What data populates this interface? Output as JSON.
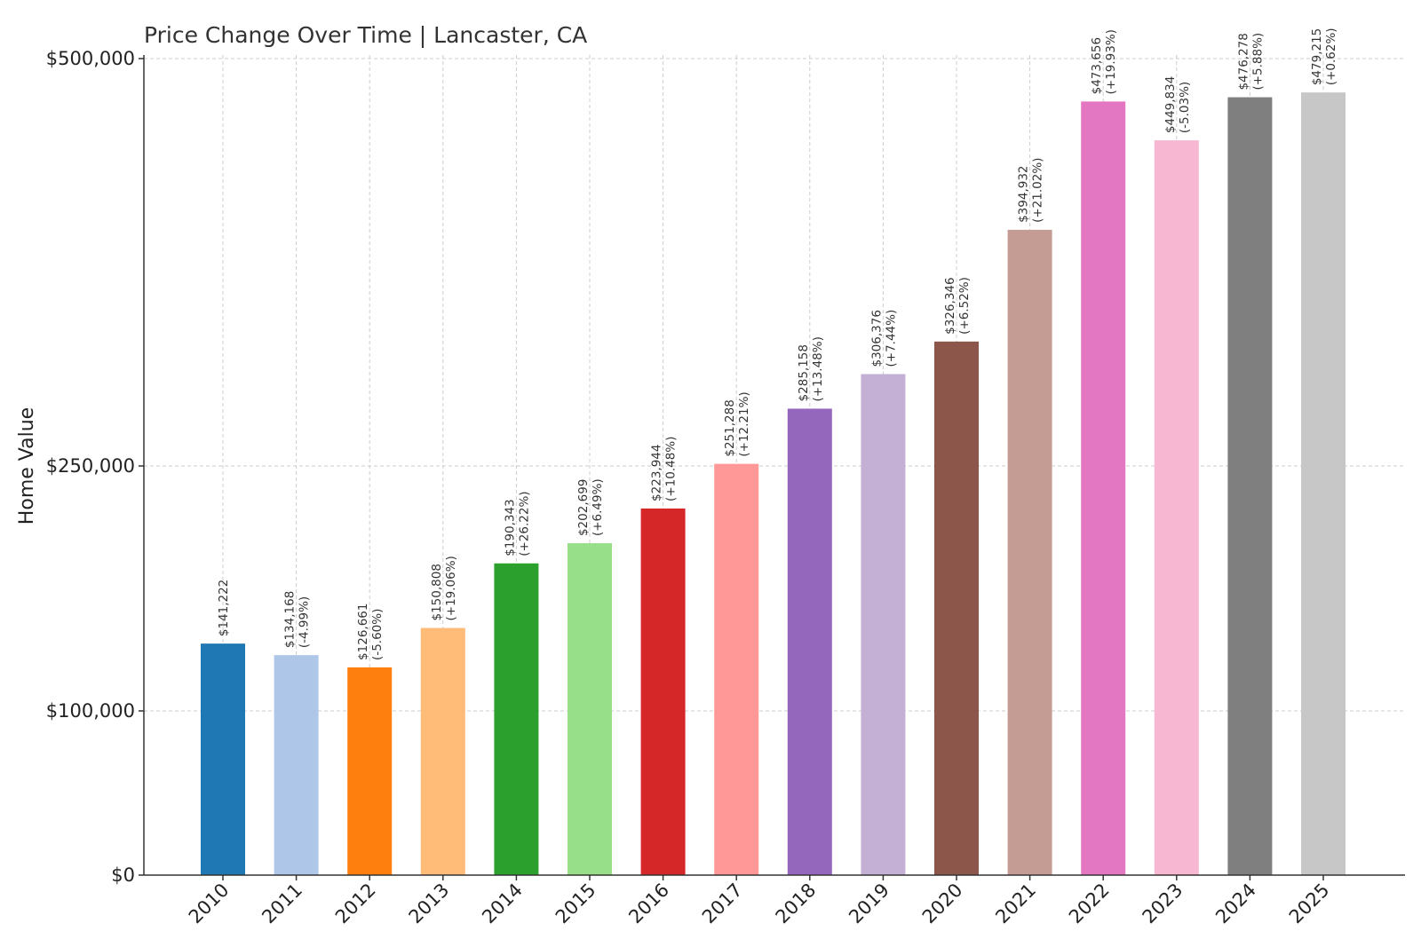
{
  "chart_data": {
    "type": "bar",
    "title": "Price Change Over Time | Lancaster, CA",
    "xlabel": "",
    "ylabel": "Home Value",
    "ylim": [
      0,
      500000
    ],
    "y_ticks": [
      {
        "value": 0,
        "label": "$0"
      },
      {
        "value": 100000,
        "label": "$100,000"
      },
      {
        "value": 250000,
        "label": "$250,000"
      },
      {
        "value": 500000,
        "label": "$500,000"
      }
    ],
    "grid": true,
    "categories": [
      "2010",
      "2011",
      "2012",
      "2013",
      "2014",
      "2015",
      "2016",
      "2017",
      "2018",
      "2019",
      "2020",
      "2021",
      "2022",
      "2023",
      "2024",
      "2025"
    ],
    "values": [
      141222,
      134168,
      126661,
      150808,
      190343,
      202699,
      223944,
      251288,
      285158,
      306376,
      326346,
      394932,
      473656,
      449834,
      476278,
      479215
    ],
    "value_labels": [
      "$141,222",
      "$134,168",
      "$126,661",
      "$150,808",
      "$190,343",
      "$202,699",
      "$223,944",
      "$251,288",
      "$285,158",
      "$306,376",
      "$326,346",
      "$394,932",
      "$473,656",
      "$449,834",
      "$476,278",
      "$479,215"
    ],
    "change_labels": [
      "",
      "(-4.99%)",
      "(-5.60%)",
      "(+19.06%)",
      "(+26.22%)",
      "(+6.49%)",
      "(+10.48%)",
      "(+12.21%)",
      "(+13.48%)",
      "(+7.44%)",
      "(+6.52%)",
      "(+21.02%)",
      "(+19.93%)",
      "(-5.03%)",
      "(+5.88%)",
      "(+0.62%)"
    ],
    "colors": [
      "#1f77b4",
      "#aec7e8",
      "#ff7f0e",
      "#ffbb78",
      "#2ca02c",
      "#98df8a",
      "#d62728",
      "#ff9896",
      "#9467bd",
      "#c5b0d5",
      "#8c564b",
      "#c49c94",
      "#e377c2",
      "#f7b6d2",
      "#7f7f7f",
      "#c7c7c7"
    ]
  }
}
